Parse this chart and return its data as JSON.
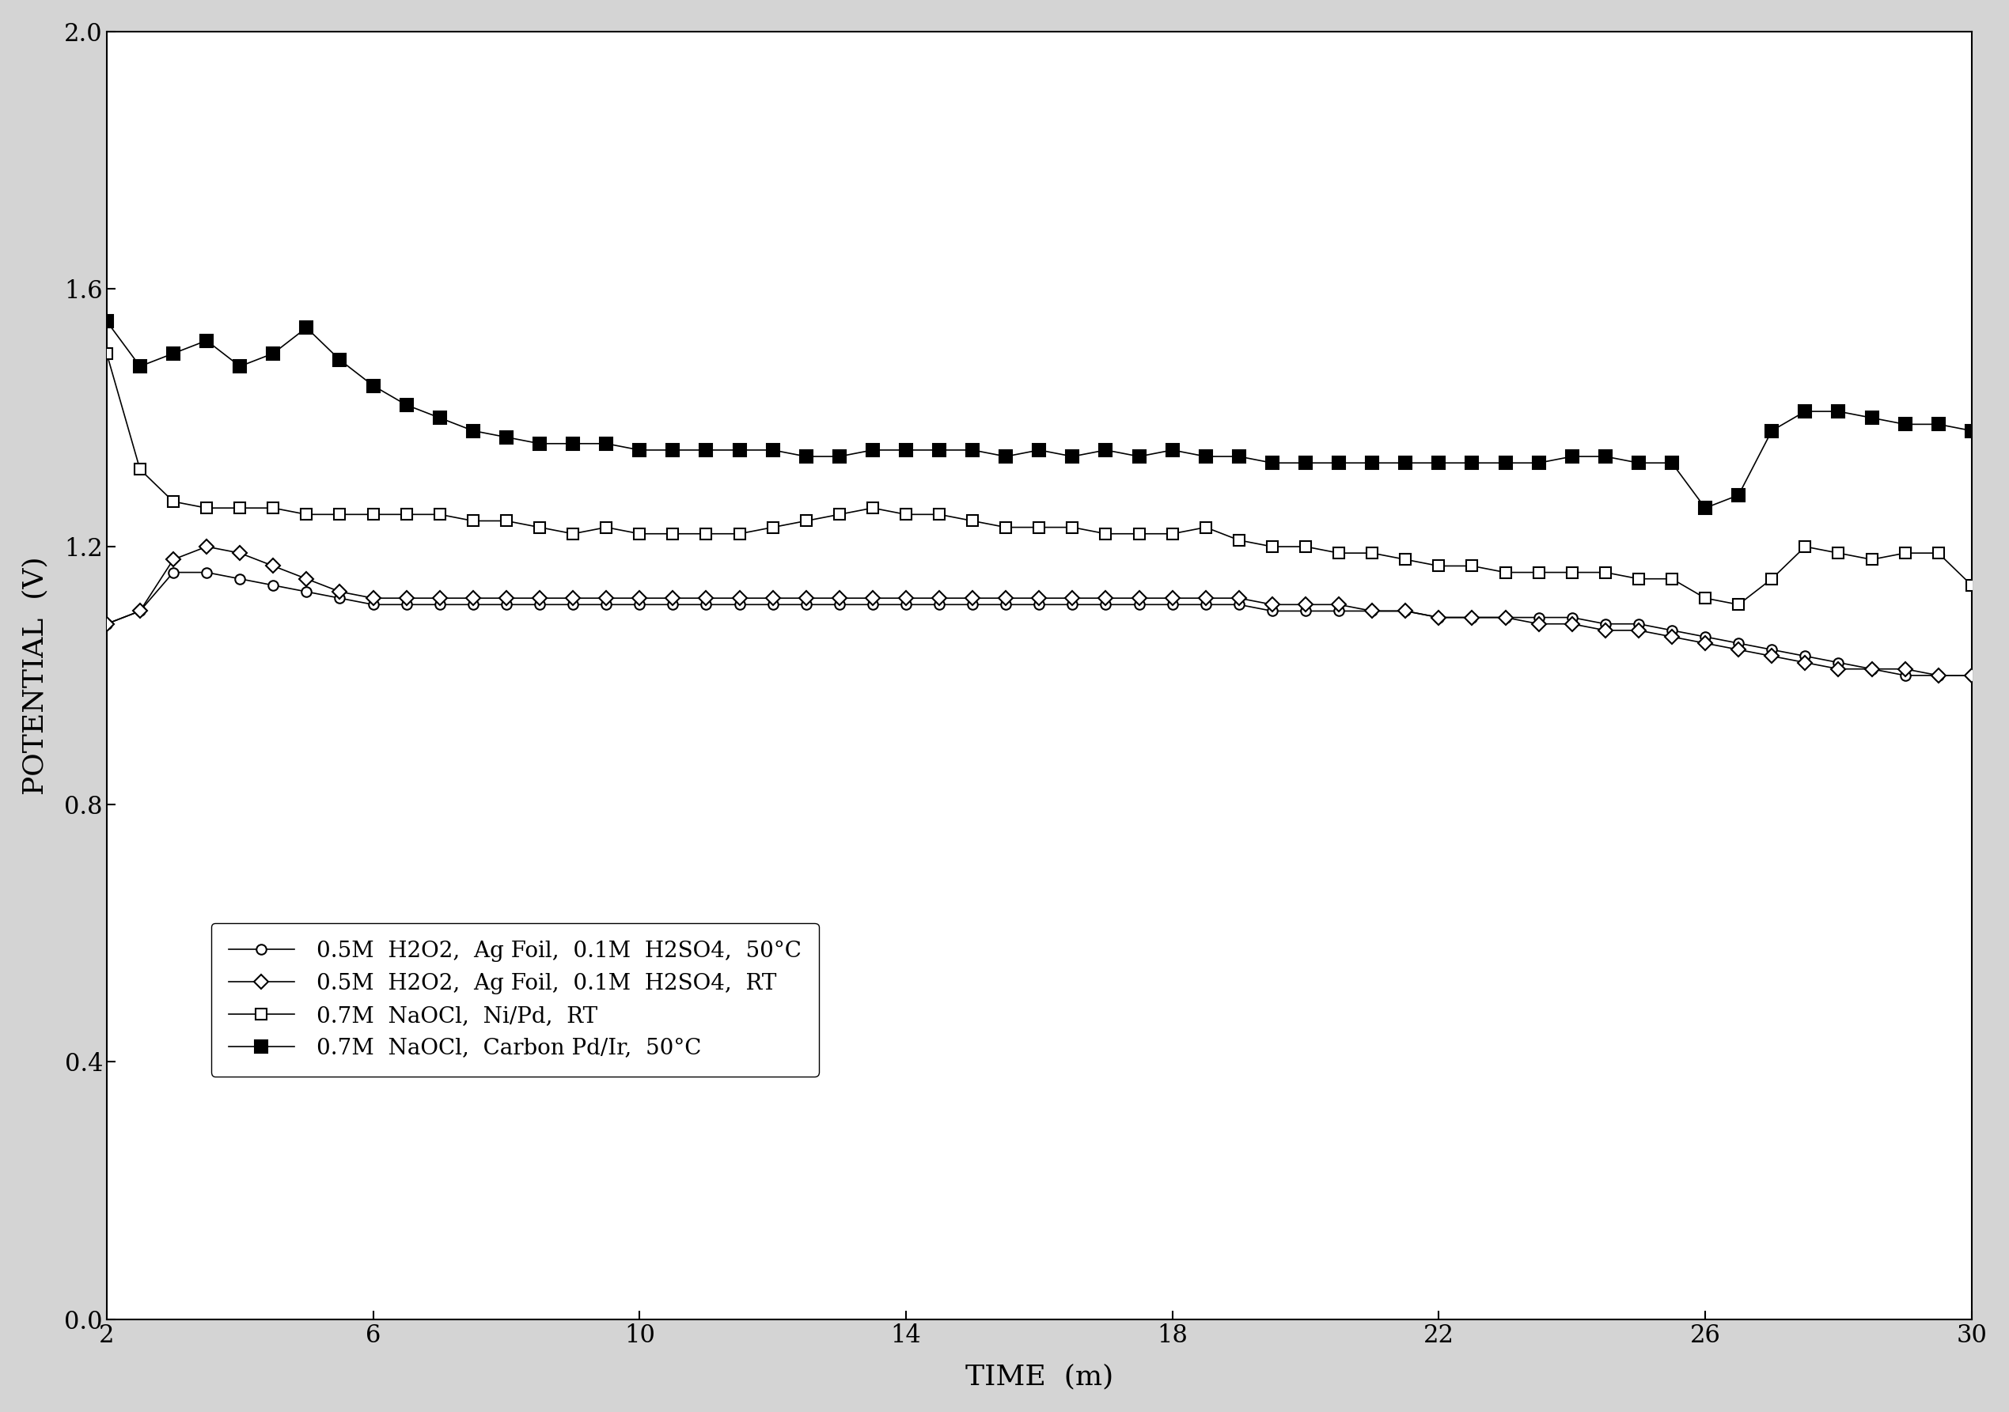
{
  "xlim": [
    2,
    30
  ],
  "ylim": [
    0.0,
    2.0
  ],
  "xticks": [
    2,
    6,
    10,
    14,
    18,
    22,
    26,
    30
  ],
  "yticks": [
    0.0,
    0.4,
    0.8,
    1.2,
    1.6,
    2.0
  ],
  "xlabel": "TIME  (m)",
  "ylabel": "POTENTIAL  (V)",
  "background_color": "#d4d4d4",
  "plot_bg_color": "#ffffff",
  "legend": [
    "0.5M  H2O2,  Ag Foil,  0.1M  H2SO4,  50°C",
    "0.5M  H2O2,  Ag Foil,  0.1M  H2SO4,  RT",
    "0.7M  NaOCl,  Ni/Pd,  RT",
    "0.7M  NaOCl,  Carbon Pd/Ir,  50°C"
  ],
  "series1_x": [
    2,
    2.5,
    3,
    3.5,
    4,
    4.5,
    5,
    5.5,
    6,
    6.5,
    7,
    7.5,
    8,
    8.5,
    9,
    9.5,
    10,
    10.5,
    11,
    11.5,
    12,
    12.5,
    13,
    13.5,
    14,
    14.5,
    15,
    15.5,
    16,
    16.5,
    17,
    17.5,
    18,
    18.5,
    19,
    19.5,
    20,
    20.5,
    21,
    21.5,
    22,
    22.5,
    23,
    23.5,
    24,
    24.5,
    25,
    25.5,
    26,
    26.5,
    27,
    27.5,
    28,
    28.5,
    29,
    29.5,
    30
  ],
  "series1_y": [
    1.08,
    1.1,
    1.16,
    1.16,
    1.15,
    1.14,
    1.13,
    1.12,
    1.11,
    1.11,
    1.11,
    1.11,
    1.11,
    1.11,
    1.11,
    1.11,
    1.11,
    1.11,
    1.11,
    1.11,
    1.11,
    1.11,
    1.11,
    1.11,
    1.11,
    1.11,
    1.11,
    1.11,
    1.11,
    1.11,
    1.11,
    1.11,
    1.11,
    1.11,
    1.11,
    1.1,
    1.1,
    1.1,
    1.1,
    1.1,
    1.09,
    1.09,
    1.09,
    1.09,
    1.09,
    1.08,
    1.08,
    1.07,
    1.06,
    1.05,
    1.04,
    1.03,
    1.02,
    1.01,
    1.0,
    1.0,
    1.0
  ],
  "series2_x": [
    2,
    2.5,
    3,
    3.5,
    4,
    4.5,
    5,
    5.5,
    6,
    6.5,
    7,
    7.5,
    8,
    8.5,
    9,
    9.5,
    10,
    10.5,
    11,
    11.5,
    12,
    12.5,
    13,
    13.5,
    14,
    14.5,
    15,
    15.5,
    16,
    16.5,
    17,
    17.5,
    18,
    18.5,
    19,
    19.5,
    20,
    20.5,
    21,
    21.5,
    22,
    22.5,
    23,
    23.5,
    24,
    24.5,
    25,
    25.5,
    26,
    26.5,
    27,
    27.5,
    28,
    28.5,
    29,
    29.5,
    30
  ],
  "series2_y": [
    1.08,
    1.1,
    1.18,
    1.2,
    1.19,
    1.17,
    1.15,
    1.13,
    1.12,
    1.12,
    1.12,
    1.12,
    1.12,
    1.12,
    1.12,
    1.12,
    1.12,
    1.12,
    1.12,
    1.12,
    1.12,
    1.12,
    1.12,
    1.12,
    1.12,
    1.12,
    1.12,
    1.12,
    1.12,
    1.12,
    1.12,
    1.12,
    1.12,
    1.12,
    1.12,
    1.11,
    1.11,
    1.11,
    1.1,
    1.1,
    1.09,
    1.09,
    1.09,
    1.08,
    1.08,
    1.07,
    1.07,
    1.06,
    1.05,
    1.04,
    1.03,
    1.02,
    1.01,
    1.01,
    1.01,
    1.0,
    1.0
  ],
  "series3_x": [
    2,
    2.5,
    3,
    3.5,
    4,
    4.5,
    5,
    5.5,
    6,
    6.5,
    7,
    7.5,
    8,
    8.5,
    9,
    9.5,
    10,
    10.5,
    11,
    11.5,
    12,
    12.5,
    13,
    13.5,
    14,
    14.5,
    15,
    15.5,
    16,
    16.5,
    17,
    17.5,
    18,
    18.5,
    19,
    19.5,
    20,
    20.5,
    21,
    21.5,
    22,
    22.5,
    23,
    23.5,
    24,
    24.5,
    25,
    25.5,
    26,
    26.5,
    27,
    27.5,
    28,
    28.5,
    29,
    29.5,
    30
  ],
  "series3_y": [
    1.5,
    1.32,
    1.27,
    1.26,
    1.26,
    1.26,
    1.25,
    1.25,
    1.25,
    1.25,
    1.25,
    1.24,
    1.24,
    1.23,
    1.22,
    1.23,
    1.22,
    1.22,
    1.22,
    1.22,
    1.23,
    1.24,
    1.25,
    1.26,
    1.25,
    1.25,
    1.24,
    1.23,
    1.23,
    1.23,
    1.22,
    1.22,
    1.22,
    1.23,
    1.21,
    1.2,
    1.2,
    1.19,
    1.19,
    1.18,
    1.17,
    1.17,
    1.16,
    1.16,
    1.16,
    1.16,
    1.15,
    1.15,
    1.12,
    1.11,
    1.15,
    1.2,
    1.19,
    1.18,
    1.19,
    1.19,
    1.14
  ],
  "series4_x": [
    2,
    2.5,
    3,
    3.5,
    4,
    4.5,
    5,
    5.5,
    6,
    6.5,
    7,
    7.5,
    8,
    8.5,
    9,
    9.5,
    10,
    10.5,
    11,
    11.5,
    12,
    12.5,
    13,
    13.5,
    14,
    14.5,
    15,
    15.5,
    16,
    16.5,
    17,
    17.5,
    18,
    18.5,
    19,
    19.5,
    20,
    20.5,
    21,
    21.5,
    22,
    22.5,
    23,
    23.5,
    24,
    24.5,
    25,
    25.5,
    26,
    26.5,
    27,
    27.5,
    28,
    28.5,
    29,
    29.5,
    30
  ],
  "series4_y": [
    1.55,
    1.48,
    1.5,
    1.52,
    1.48,
    1.5,
    1.54,
    1.49,
    1.45,
    1.42,
    1.4,
    1.38,
    1.37,
    1.36,
    1.36,
    1.36,
    1.35,
    1.35,
    1.35,
    1.35,
    1.35,
    1.34,
    1.34,
    1.35,
    1.35,
    1.35,
    1.35,
    1.34,
    1.35,
    1.34,
    1.35,
    1.34,
    1.35,
    1.34,
    1.34,
    1.33,
    1.33,
    1.33,
    1.33,
    1.33,
    1.33,
    1.33,
    1.33,
    1.33,
    1.34,
    1.34,
    1.33,
    1.33,
    1.26,
    1.28,
    1.38,
    1.41,
    1.41,
    1.4,
    1.39,
    1.39,
    1.38
  ]
}
